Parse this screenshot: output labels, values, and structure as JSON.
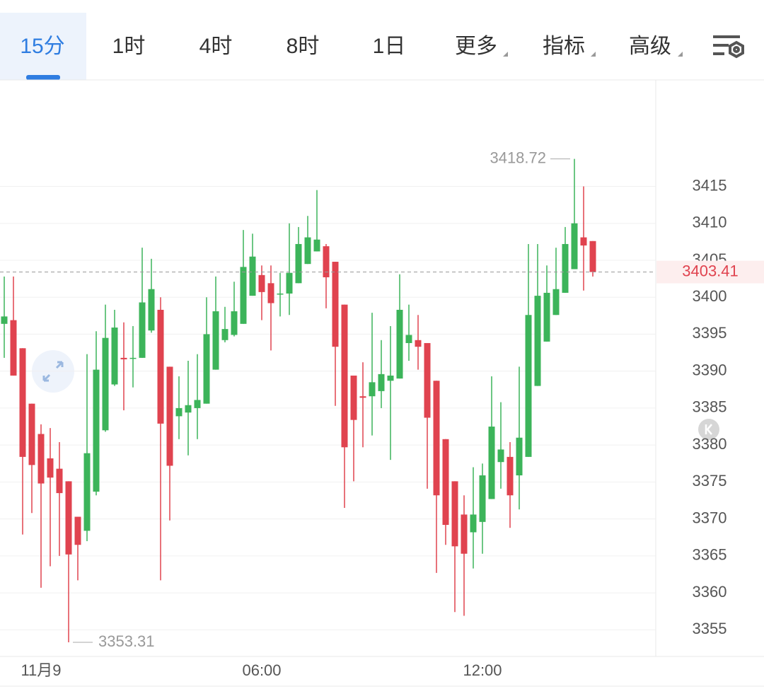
{
  "tabs": [
    "15分",
    "1时",
    "4时",
    "8时",
    "1日",
    "更多",
    "指标",
    "高级"
  ],
  "active_tab": 0,
  "chart_data": {
    "type": "candlestick",
    "categories": [
      null,
      null,
      null,
      null,
      "11月9",
      null,
      null,
      null,
      null,
      null,
      null,
      null,
      null,
      null,
      null,
      null,
      null,
      null,
      null,
      null,
      null,
      null,
      null,
      null,
      null,
      null,
      null,
      null,
      "06:00",
      null,
      null,
      null,
      null,
      null,
      null,
      null,
      null,
      null,
      null,
      null,
      null,
      null,
      null,
      null,
      null,
      null,
      null,
      null,
      null,
      null,
      null,
      null,
      "12:00",
      null,
      null,
      null,
      null,
      null,
      null,
      null,
      null,
      null,
      null,
      null,
      null
    ],
    "open": [
      3396.4,
      3396.9,
      3393.1,
      3385.6,
      3381.5,
      3378.2,
      3376.8,
      3375.1,
      3370.3,
      3368.4,
      3373.7,
      3382.0,
      3388.2,
      3391.8,
      3391.7,
      3391.8,
      3395.5,
      3398.3,
      3390.6,
      3383.9,
      3384.4,
      3385.0,
      3385.6,
      3390.2,
      3394.2,
      3394.9,
      3396.4,
      3400.2,
      3403.0,
      3401.9,
      3400.4,
      3400.5,
      3401.9,
      3404.5,
      3406.2,
      3406.9,
      3404.8,
      3399.0,
      3389.4,
      3386.6,
      3386.6,
      3387.3,
      3388.7,
      3389.0,
      3393.8,
      3394.2,
      3393.8,
      3388.7,
      3380.8,
      3375.1,
      3370.6,
      3368.2,
      3369.6,
      3372.7,
      3377.7,
      3378.4,
      3375.9,
      3378.4,
      3388.0,
      3394.0,
      3397.6,
      3400.6,
      3403.8,
      3408.1,
      3407.6
    ],
    "high": [
      3402.8,
      3402.8,
      3393.1,
      3385.6,
      3382.8,
      3382.3,
      3380.4,
      3375.1,
      3370.3,
      3392.3,
      3395.4,
      3399.0,
      3398.3,
      3396.6,
      3396.1,
      3406.7,
      3405.2,
      3400.0,
      3390.6,
      3389.3,
      3391.4,
      3392.3,
      3400.0,
      3402.8,
      3398.7,
      3402.1,
      3409.1,
      3408.6,
      3404.3,
      3404.3,
      3403.3,
      3410.0,
      3409.5,
      3411.0,
      3414.5,
      3407.2,
      3404.8,
      3399.0,
      3389.4,
      3391.2,
      3397.9,
      3394.2,
      3396.1,
      3403.1,
      3399.0,
      3397.6,
      3393.8,
      3388.7,
      3380.8,
      3375.1,
      3373.2,
      3377.0,
      3377.5,
      3389.3,
      3385.8,
      3380.4,
      3390.6,
      3407.2,
      3407.2,
      3404.3,
      3406.7,
      3409.5,
      3418.72,
      3415.0,
      3407.6
    ],
    "low": [
      3391.8,
      3389.4,
      3367.9,
      3370.8,
      3360.7,
      3363.6,
      3365.0,
      3353.31,
      3361.7,
      3367.0,
      3373.2,
      3381.8,
      3388.0,
      3384.7,
      3387.8,
      3391.8,
      3395.2,
      3361.7,
      3369.8,
      3380.8,
      3378.6,
      3380.8,
      3385.6,
      3390.2,
      3393.9,
      3394.7,
      3396.4,
      3400.2,
      3396.9,
      3392.8,
      3397.4,
      3397.6,
      3401.9,
      3404.5,
      3406.2,
      3398.5,
      3385.3,
      3371.5,
      3375.1,
      3379.7,
      3381.3,
      3385.0,
      3378.0,
      3389.0,
      3391.4,
      3390.2,
      3374.1,
      3362.7,
      3366.5,
      3357.4,
      3356.9,
      3363.3,
      3365.3,
      3372.7,
      3374.1,
      3368.8,
      3371.3,
      3378.4,
      3388.0,
      3394.0,
      3397.6,
      3400.6,
      3403.8,
      3400.9,
      3402.8
    ],
    "close": [
      3397.4,
      3389.4,
      3378.4,
      3377.3,
      3374.8,
      3375.6,
      3373.5,
      3365.2,
      3366.5,
      3378.9,
      3390.2,
      3394.5,
      3395.9,
      3391.6,
      3391.8,
      3399.3,
      3401.1,
      3382.9,
      3377.2,
      3385.0,
      3385.4,
      3386.1,
      3395.0,
      3398.1,
      3395.7,
      3398.1,
      3404.1,
      3405.5,
      3400.7,
      3399.2,
      3400.5,
      3403.3,
      3407.2,
      3408.1,
      3407.8,
      3402.7,
      3393.3,
      3379.7,
      3383.4,
      3386.4,
      3388.5,
      3389.6,
      3389.4,
      3398.3,
      3394.9,
      3393.3,
      3383.7,
      3373.2,
      3369.2,
      3366.3,
      3365.3,
      3370.6,
      3375.9,
      3382.5,
      3379.4,
      3373.2,
      3381.0,
      3397.6,
      3400.2,
      3400.6,
      3401.1,
      3407.2,
      3410.0,
      3407.0,
      3403.41
    ],
    "up_color": "#3cb45a",
    "down_color": "#e0434f",
    "ylim": [
      3351.4,
      3429.4
    ],
    "yticks": [
      3355,
      3360,
      3365,
      3370,
      3375,
      3380,
      3385,
      3390,
      3395,
      3400,
      3405,
      3410,
      3415
    ],
    "grid": true
  }
}
